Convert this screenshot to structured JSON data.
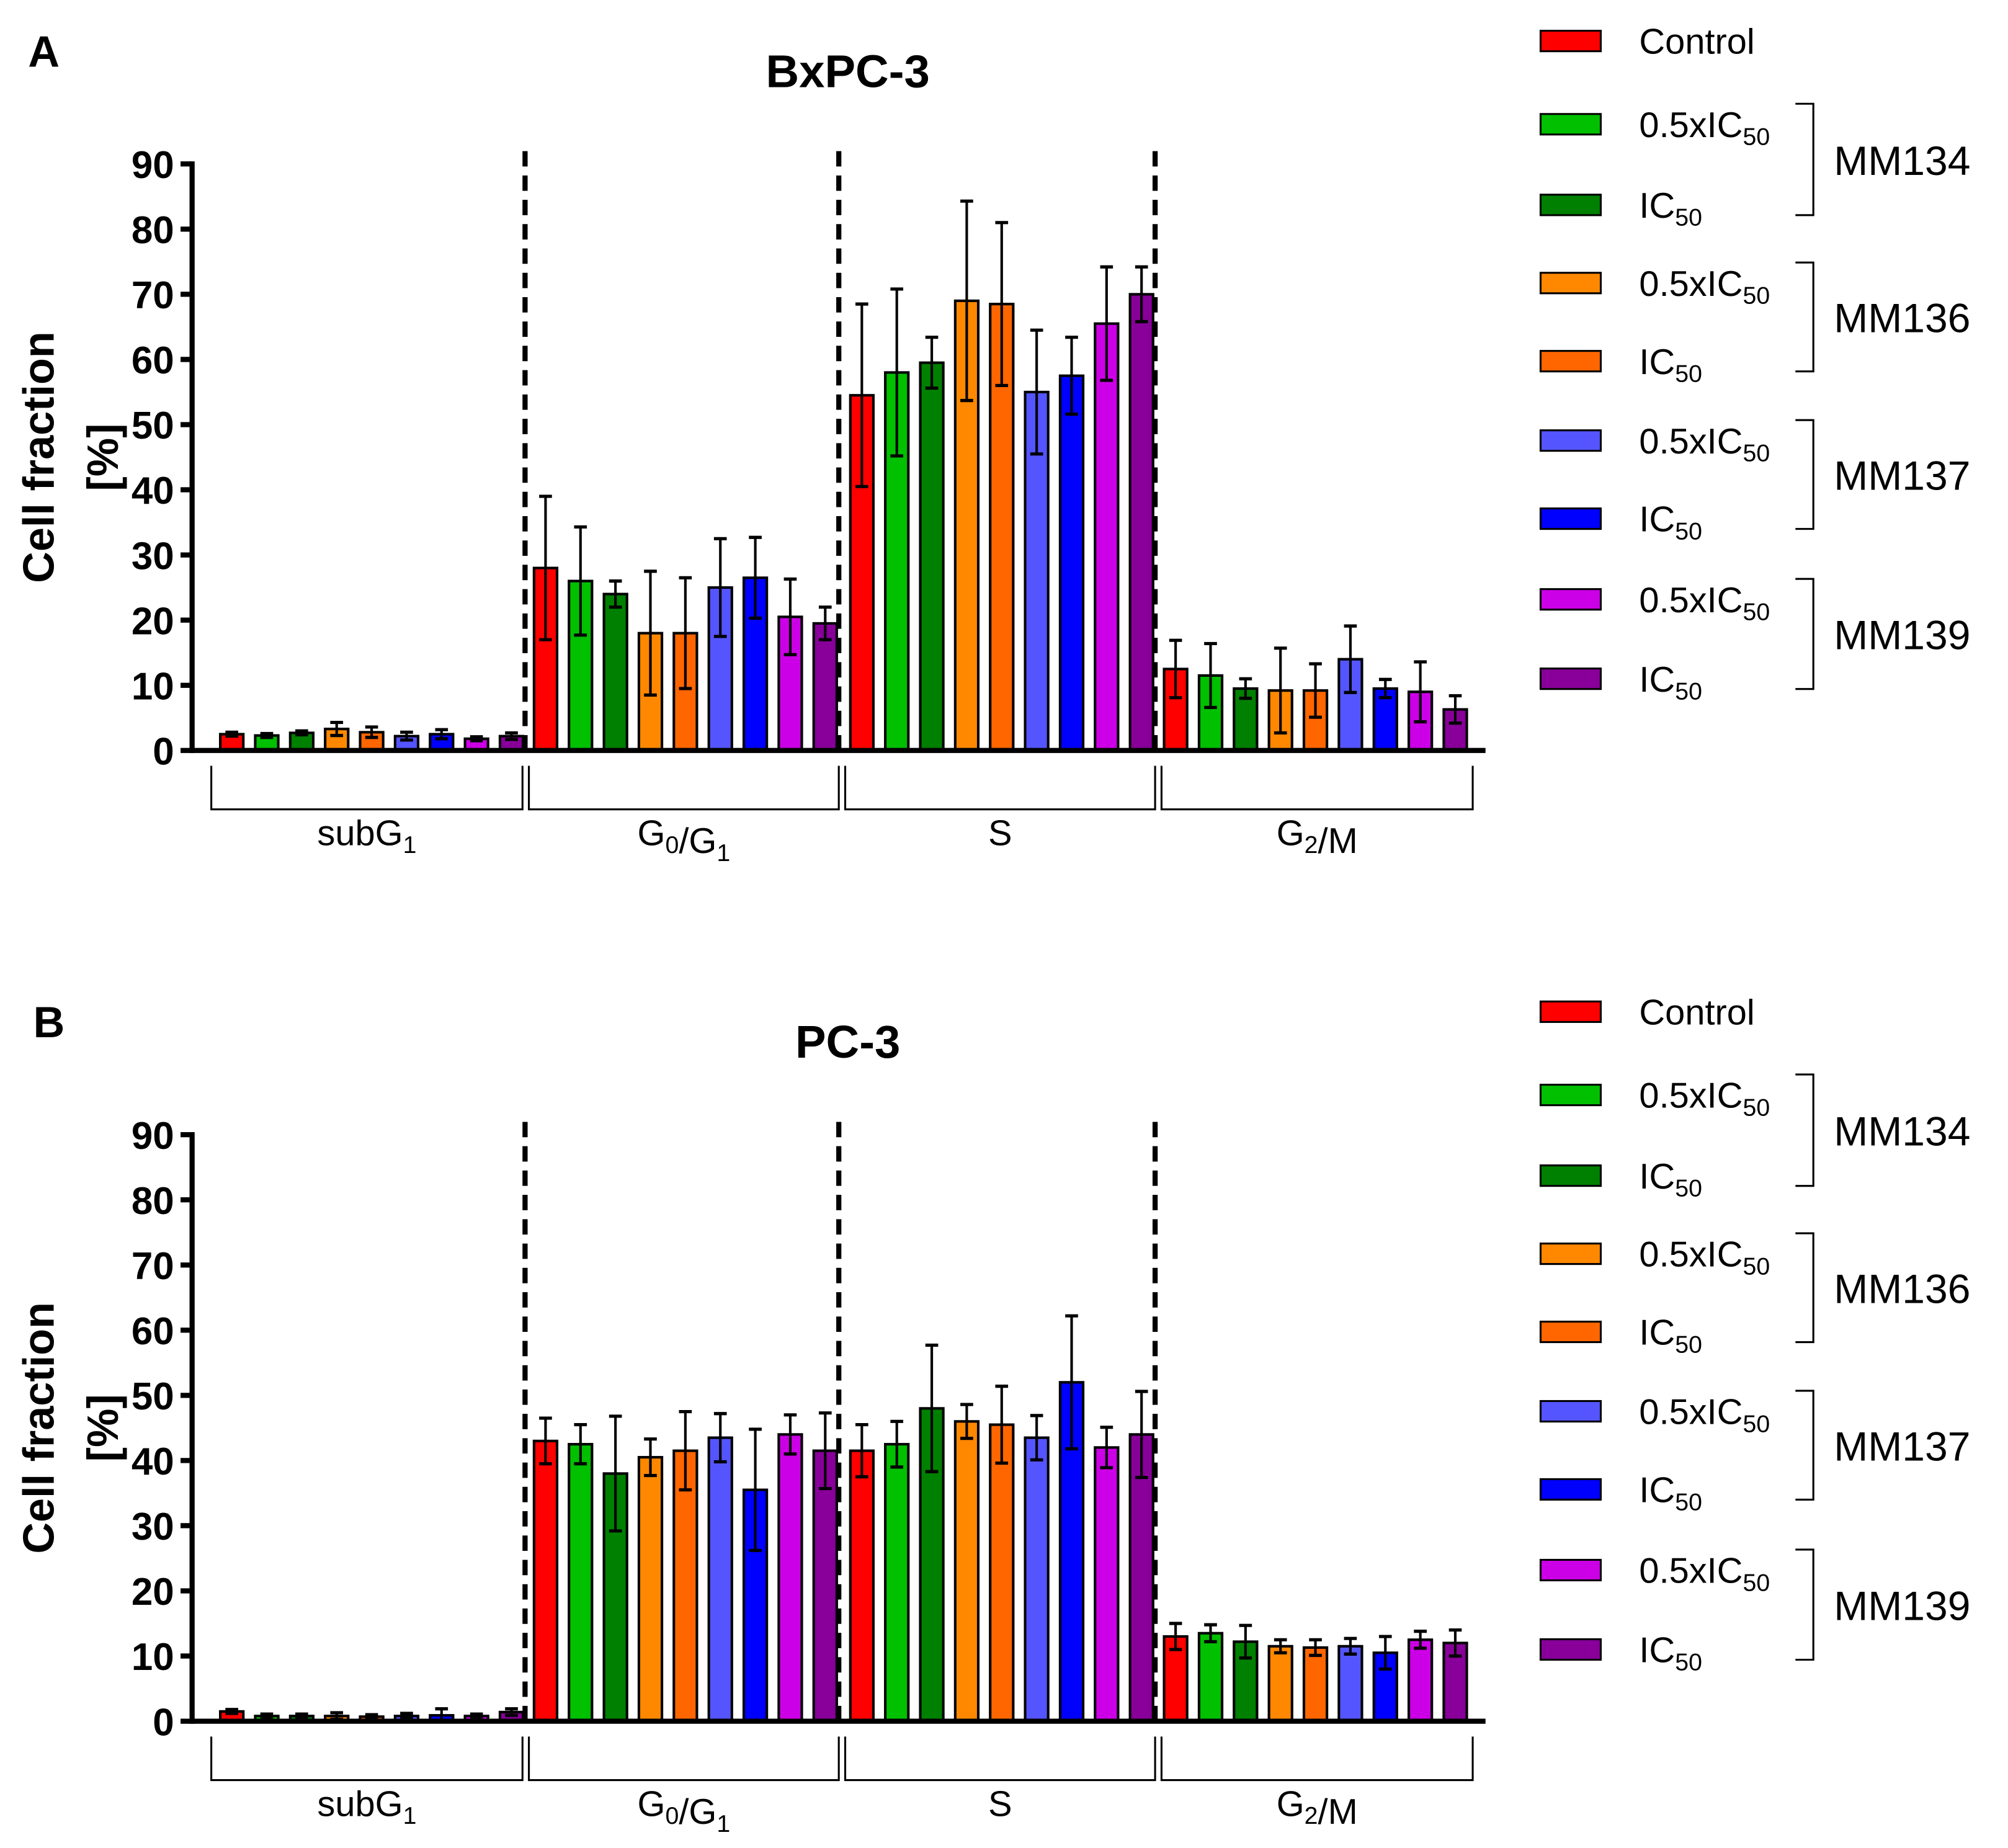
{
  "colors": [
    "#ff0000",
    "#00c000",
    "#008000",
    "#ff8800",
    "#ff6600",
    "#5555ff",
    "#0000ff",
    "#cc00e6",
    "#880099"
  ],
  "legend": {
    "items": [
      {
        "pre": "Control",
        "sub": ""
      },
      {
        "pre": "0.5xIC",
        "sub": "50"
      },
      {
        "pre": "IC",
        "sub": "50"
      },
      {
        "pre": "0.5xIC",
        "sub": "50"
      },
      {
        "pre": "IC",
        "sub": "50"
      },
      {
        "pre": "0.5xIC",
        "sub": "50"
      },
      {
        "pre": "IC",
        "sub": "50"
      },
      {
        "pre": "0.5xIC",
        "sub": "50"
      },
      {
        "pre": "IC",
        "sub": "50"
      }
    ],
    "groups": [
      "MM134",
      "MM136",
      "MM137",
      "MM139"
    ]
  },
  "chart_data": [
    {
      "type": "bar",
      "panel_label": "A",
      "title": "BxPC-3",
      "ylabel": [
        "Cell fraction",
        "[%]"
      ],
      "ylim": [
        0,
        90
      ],
      "yticks": [
        "0",
        "10",
        "20",
        "30",
        "40",
        "50",
        "60",
        "70",
        "80",
        "90"
      ],
      "categories": [
        [
          {
            "t": "subG"
          },
          {
            "s": "1"
          }
        ],
        [
          {
            "t": "G"
          },
          {
            "s": "0"
          },
          {
            "t": "/G"
          },
          {
            "s": "1"
          }
        ],
        [
          {
            "t": "S"
          }
        ],
        [
          {
            "t": "G"
          },
          {
            "s": "2"
          },
          {
            "t": "/M"
          }
        ]
      ],
      "series_names": [
        "Control",
        "MM134 0.5xIC50",
        "MM134 IC50",
        "MM136 0.5xIC50",
        "MM136 IC50",
        "MM137 0.5xIC50",
        "MM137 IC50",
        "MM139 0.5xIC50",
        "MM139 IC50"
      ],
      "values": [
        [
          2.5,
          2.3,
          2.7,
          3.3,
          2.8,
          2.2,
          2.5,
          1.8,
          2.2
        ],
        [
          28,
          26,
          24,
          18,
          18,
          25,
          26.5,
          20.5,
          19.5
        ],
        [
          54.5,
          58,
          59.5,
          69,
          68.5,
          55,
          57.5,
          65.5,
          70
        ],
        [
          12.5,
          11.5,
          9.5,
          9.2,
          9.2,
          14,
          9.5,
          9,
          6.3
        ]
      ],
      "errors": [
        [
          0.3,
          0.3,
          0.3,
          1,
          0.8,
          0.6,
          0.7,
          0.3,
          0.5
        ],
        [
          11,
          8.3,
          2,
          9.5,
          8.5,
          7.5,
          6.2,
          5.8,
          2.5
        ],
        [
          14,
          12.8,
          3.9,
          15.3,
          12.5,
          9.5,
          5.9,
          8.7,
          4.2
        ],
        [
          4.4,
          4.9,
          1.5,
          6.5,
          4.1,
          5.1,
          1.4,
          4.6,
          2.1
        ]
      ]
    },
    {
      "type": "bar",
      "panel_label": "B",
      "title": "PC-3",
      "ylabel": [
        "Cell fraction",
        "[%]"
      ],
      "ylim": [
        0,
        90
      ],
      "yticks": [
        "0",
        "10",
        "20",
        "30",
        "40",
        "50",
        "60",
        "70",
        "80",
        "90"
      ],
      "categories": [
        [
          {
            "t": "subG"
          },
          {
            "s": "1"
          }
        ],
        [
          {
            "t": "G"
          },
          {
            "s": "0"
          },
          {
            "t": "/G"
          },
          {
            "s": "1"
          }
        ],
        [
          {
            "t": "S"
          }
        ],
        [
          {
            "t": "G"
          },
          {
            "s": "2"
          },
          {
            "t": "/M"
          }
        ]
      ],
      "series_names": [
        "Control",
        "MM134 0.5xIC50",
        "MM134 IC50",
        "MM136 0.5xIC50",
        "MM136 IC50",
        "MM137 0.5xIC50",
        "MM137 IC50",
        "MM139 0.5xIC50",
        "MM139 IC50"
      ],
      "values": [
        [
          1.5,
          0.8,
          0.8,
          0.8,
          0.7,
          0.8,
          0.9,
          0.8,
          1.4
        ],
        [
          43,
          42.5,
          38,
          40.5,
          41.5,
          43.5,
          35.5,
          44,
          41.5
        ],
        [
          41.5,
          42.5,
          48,
          46,
          45.5,
          43.5,
          52,
          42,
          44
        ],
        [
          13,
          13.5,
          12.2,
          11.5,
          11.3,
          11.5,
          10.5,
          12.5,
          12
        ]
      ],
      "errors": [
        [
          0.3,
          0.3,
          0.3,
          0.5,
          0.3,
          0.4,
          1,
          0.3,
          0.5
        ],
        [
          3.5,
          3,
          8.8,
          2.8,
          6,
          3.7,
          9.3,
          3,
          5.8
        ],
        [
          4,
          3.5,
          9.7,
          2.6,
          5.9,
          3.4,
          10.2,
          3.1,
          6.6
        ],
        [
          2,
          1.3,
          2.5,
          1,
          1.2,
          1.2,
          2.5,
          1.3,
          2
        ]
      ]
    }
  ]
}
